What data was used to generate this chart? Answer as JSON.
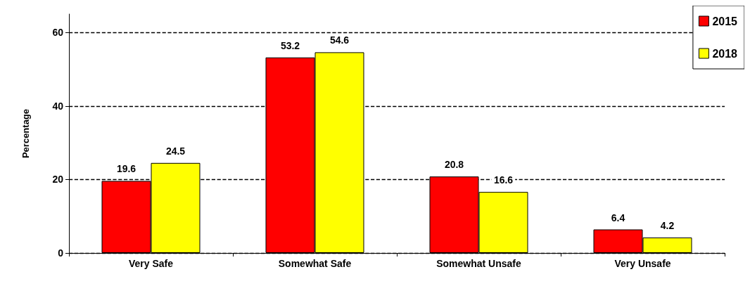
{
  "chart_data": {
    "type": "bar",
    "ylabel": "Percentage",
    "categories": [
      "Very Safe",
      "Somewhat Safe",
      "Somewhat Unsafe",
      "Very Unsafe"
    ],
    "series": [
      {
        "name": "2015",
        "color": "#ff0000",
        "values": [
          19.6,
          53.2,
          20.8,
          6.4
        ]
      },
      {
        "name": "2018",
        "color": "#ffff00",
        "values": [
          24.5,
          54.6,
          16.6,
          4.2
        ]
      }
    ],
    "ylim": [
      0,
      65
    ],
    "yticks": [
      0,
      20,
      40,
      60
    ],
    "grid": "y",
    "legend": "top right",
    "data_labels": true
  }
}
